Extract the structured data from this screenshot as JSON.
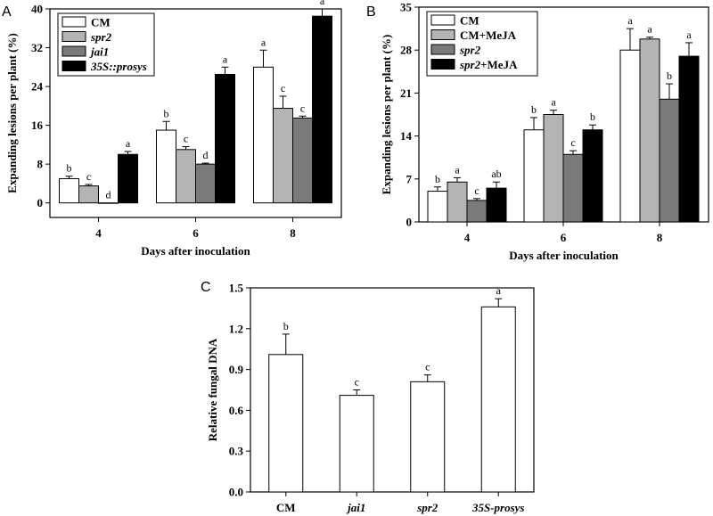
{
  "panels": {
    "A": {
      "label": "A"
    },
    "B": {
      "label": "B"
    },
    "C": {
      "label": "C"
    }
  },
  "chart_data": [
    {
      "panel": "A",
      "type": "bar",
      "title": "",
      "xlabel": "Days after inoculation",
      "ylabel": "Expanding lesions per plant (%)",
      "categories": [
        "4",
        "6",
        "8"
      ],
      "ylim": [
        -3,
        40
      ],
      "yticks": [
        0,
        8,
        16,
        24,
        32,
        40
      ],
      "legend_position": "top-left",
      "series": [
        {
          "name": "CM",
          "italic": false,
          "color": "#ffffff",
          "values": [
            5.0,
            15.0,
            28.0
          ],
          "errors": [
            0.5,
            1.8,
            3.5
          ],
          "labels": [
            "b",
            "b",
            "a"
          ]
        },
        {
          "name": "spr2",
          "italic": true,
          "color": "#b4b4b4",
          "values": [
            3.5,
            11.0,
            19.5
          ],
          "errors": [
            0.3,
            0.6,
            2.5
          ],
          "labels": [
            "c",
            "c",
            "c"
          ]
        },
        {
          "name": "jai1",
          "italic": true,
          "color": "#7a7a7a",
          "values": [
            0.0,
            8.0,
            17.5
          ],
          "errors": [
            0.0,
            0.2,
            0.4
          ],
          "labels": [
            "d",
            "d",
            "c"
          ]
        },
        {
          "name": "35S::prosys",
          "italic": true,
          "color": "#000000",
          "values": [
            10.0,
            26.5,
            38.5
          ],
          "errors": [
            0.6,
            1.5,
            1.5
          ],
          "labels": [
            "a",
            "a",
            "a"
          ]
        }
      ]
    },
    {
      "panel": "B",
      "type": "bar",
      "title": "",
      "xlabel": "Days after inoculation",
      "ylabel": "Expanding lesions per plant (%)",
      "categories": [
        "4",
        "6",
        "8"
      ],
      "ylim": [
        0,
        35
      ],
      "yticks": [
        0,
        7,
        14,
        21,
        28,
        35
      ],
      "legend_position": "top-left",
      "series": [
        {
          "name": "CM",
          "italic": false,
          "color": "#ffffff",
          "values": [
            5.0,
            15.0,
            28.0
          ],
          "errors": [
            0.7,
            2.0,
            3.5
          ],
          "labels": [
            "b",
            "b",
            "a"
          ]
        },
        {
          "name": "CM+MeJA",
          "italic": false,
          "color": "#b4b4b4",
          "values": [
            6.5,
            17.5,
            29.8
          ],
          "errors": [
            0.7,
            0.7,
            0.3
          ],
          "labels": [
            "a",
            "a",
            "a"
          ]
        },
        {
          "name": "spr2",
          "italic": true,
          "color": "#7a7a7a",
          "values": [
            3.5,
            11.0,
            20.0
          ],
          "errors": [
            0.3,
            0.6,
            2.5
          ],
          "labels": [
            "c",
            "c",
            "b"
          ]
        },
        {
          "name": "spr2+MeJA",
          "italic": false,
          "name_italic_part": "spr2",
          "name_rest": "+MeJA",
          "color": "#000000",
          "values": [
            5.5,
            15.0,
            27.0
          ],
          "errors": [
            1.0,
            0.8,
            2.2
          ],
          "labels": [
            "ab",
            "b",
            "a"
          ]
        }
      ]
    },
    {
      "panel": "C",
      "type": "bar",
      "title": "",
      "xlabel": "",
      "ylabel": "Relative fungal DNA",
      "categories": [
        "CM",
        "jai1",
        "spr2",
        "35S-prosys"
      ],
      "categories_italic": [
        false,
        true,
        true,
        true
      ],
      "ylim": [
        0,
        1.5
      ],
      "yticks": [
        "0.0",
        "0.3",
        "0.6",
        "0.9",
        "1.2",
        "1.5"
      ],
      "series": [
        {
          "name": "Relative fungal DNA",
          "color": "#ffffff",
          "values": [
            1.01,
            0.71,
            0.81,
            1.36
          ],
          "errors": [
            0.15,
            0.04,
            0.05,
            0.06
          ],
          "labels": [
            "b",
            "c",
            "c",
            "a"
          ]
        }
      ]
    }
  ]
}
